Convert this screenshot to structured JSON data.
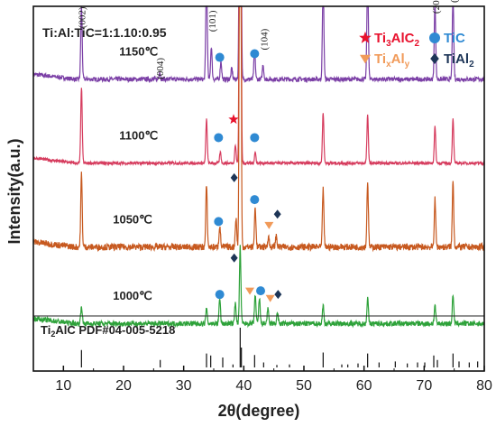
{
  "chart_data": {
    "type": "line",
    "xlabel": "2θ(degree)",
    "ylabel": "Intensity(a.u.)",
    "xlim": [
      5,
      80
    ],
    "xticks": [
      10,
      20,
      30,
      40,
      50,
      60,
      70,
      80
    ],
    "composition_label": "Ti:Al:TiC=1:1.10:0.95",
    "reference_label": {
      "base": "Ti",
      "sub": "2",
      "rest": "AlC  PDF#04-005-5218"
    },
    "legend": [
      {
        "marker": "star",
        "color": "#e8112d",
        "parts": [
          [
            "Ti",
            ""
          ],
          [
            "3",
            "sub"
          ],
          [
            "AlC",
            ""
          ],
          [
            "2",
            "sub"
          ]
        ]
      },
      {
        "marker": "circle",
        "color": "#2f8ad3",
        "parts": [
          [
            "TiC",
            ""
          ]
        ]
      },
      {
        "marker": "triangle",
        "color": "#f19a59",
        "parts": [
          [
            "Ti",
            ""
          ],
          [
            "x",
            "sub"
          ],
          [
            "Al",
            ""
          ],
          [
            "y",
            "sub"
          ]
        ]
      },
      {
        "marker": "diamond",
        "color": "#1d3557",
        "parts": [
          [
            "TiAl",
            ""
          ],
          [
            "2",
            "sub"
          ]
        ]
      }
    ],
    "series": [
      {
        "name": "1150℃",
        "color": "#7b3fa6",
        "baseline": 0.8,
        "noise": 0.006,
        "label_x": 22.5,
        "peaks": [
          [
            13.0,
            0.2
          ],
          [
            26.0,
            0.02
          ],
          [
            33.8,
            0.3
          ],
          [
            34.6,
            0.09
          ],
          [
            36.2,
            0.05
          ],
          [
            38.0,
            0.03
          ],
          [
            39.4,
            2.0
          ],
          [
            41.8,
            0.08
          ],
          [
            43.2,
            0.04
          ],
          [
            53.2,
            0.27
          ],
          [
            60.6,
            0.3
          ],
          [
            71.8,
            0.21
          ],
          [
            74.8,
            0.23
          ]
        ]
      },
      {
        "name": "1100℃",
        "color": "#d63c5e",
        "baseline": 0.57,
        "noise": 0.004,
        "label_x": 22.5,
        "peaks": [
          [
            13.0,
            0.21
          ],
          [
            33.8,
            0.12
          ],
          [
            36.1,
            0.03
          ],
          [
            38.6,
            0.05
          ],
          [
            39.4,
            2.0
          ],
          [
            41.9,
            0.03
          ],
          [
            53.2,
            0.14
          ],
          [
            60.6,
            0.13
          ],
          [
            71.8,
            0.1
          ],
          [
            74.8,
            0.12
          ]
        ]
      },
      {
        "name": "1050℃",
        "color": "#c7591f",
        "baseline": 0.34,
        "noise": 0.009,
        "label_x": 21.5,
        "peaks": [
          [
            13.0,
            0.2
          ],
          [
            33.8,
            0.17
          ],
          [
            36.0,
            0.06
          ],
          [
            38.7,
            0.08
          ],
          [
            39.4,
            2.0
          ],
          [
            41.9,
            0.11
          ],
          [
            44.1,
            0.03
          ],
          [
            45.4,
            0.03
          ],
          [
            53.2,
            0.16
          ],
          [
            60.6,
            0.18
          ],
          [
            71.8,
            0.13
          ],
          [
            74.8,
            0.18
          ]
        ]
      },
      {
        "name": "1000℃",
        "color": "#2ea23a",
        "baseline": 0.13,
        "noise": 0.007,
        "label_x": 21.5,
        "peaks": [
          [
            13.0,
            0.05
          ],
          [
            33.8,
            0.04
          ],
          [
            36.0,
            0.07
          ],
          [
            38.6,
            0.06
          ],
          [
            39.4,
            0.21
          ],
          [
            41.9,
            0.08
          ],
          [
            42.6,
            0.07
          ],
          [
            44.0,
            0.04
          ],
          [
            45.6,
            0.03
          ],
          [
            53.2,
            0.05
          ],
          [
            60.6,
            0.07
          ],
          [
            71.8,
            0.05
          ],
          [
            74.8,
            0.08
          ]
        ]
      }
    ],
    "peak_labels": [
      {
        "text": "(002)",
        "x": 13.0,
        "y": 0.94
      },
      {
        "text": "(004)",
        "x": 26.0,
        "y": 0.8
      },
      {
        "text": "(100)",
        "x": 33.9,
        "y": 1.06
      },
      {
        "text": "(101)",
        "x": 34.7,
        "y": 0.93
      },
      {
        "text": "(103)",
        "x": 39.4,
        "y": 1.32
      },
      {
        "text": "(104)",
        "x": 43.3,
        "y": 0.88
      },
      {
        "text": "(106)",
        "x": 53.2,
        "y": 1.04
      },
      {
        "text": "(110)",
        "x": 60.6,
        "y": 1.07
      },
      {
        "text": "(201)",
        "x": 71.9,
        "y": 0.98
      },
      {
        "text": "(116)",
        "x": 74.9,
        "y": 1.01
      }
    ],
    "markers": [
      {
        "type": "circle",
        "x": 36.0,
        "y": 0.86
      },
      {
        "type": "circle",
        "x": 41.8,
        "y": 0.87
      },
      {
        "type": "star",
        "x": 38.3,
        "y": 0.69
      },
      {
        "type": "circle",
        "x": 35.8,
        "y": 0.64
      },
      {
        "type": "circle",
        "x": 41.8,
        "y": 0.64
      },
      {
        "type": "diamond",
        "x": 38.4,
        "y": 0.53
      },
      {
        "type": "circle",
        "x": 35.8,
        "y": 0.41
      },
      {
        "type": "circle",
        "x": 41.8,
        "y": 0.47
      },
      {
        "type": "triangle",
        "x": 44.2,
        "y": 0.4
      },
      {
        "type": "diamond",
        "x": 45.6,
        "y": 0.43
      },
      {
        "type": "diamond",
        "x": 38.4,
        "y": 0.31
      },
      {
        "type": "circle",
        "x": 36.0,
        "y": 0.21
      },
      {
        "type": "triangle",
        "x": 41.0,
        "y": 0.22
      },
      {
        "type": "circle",
        "x": 42.8,
        "y": 0.22
      },
      {
        "type": "triangle",
        "x": 44.4,
        "y": 0.2
      },
      {
        "type": "diamond",
        "x": 45.7,
        "y": 0.21
      }
    ],
    "reference_sticks": [
      [
        13.0,
        0.35
      ],
      [
        26.1,
        0.15
      ],
      [
        33.8,
        0.28
      ],
      [
        34.5,
        0.24
      ],
      [
        36.5,
        0.2
      ],
      [
        38.2,
        0.06
      ],
      [
        39.4,
        0.8
      ],
      [
        39.6,
        0.4
      ],
      [
        41.8,
        0.25
      ],
      [
        43.3,
        0.1
      ],
      [
        45.5,
        0.05
      ],
      [
        47.6,
        0.06
      ],
      [
        53.2,
        0.3
      ],
      [
        56.3,
        0.06
      ],
      [
        57.3,
        0.06
      ],
      [
        59.0,
        0.08
      ],
      [
        60.6,
        0.28
      ],
      [
        62.5,
        0.1
      ],
      [
        65.2,
        0.12
      ],
      [
        67.2,
        0.08
      ],
      [
        68.9,
        0.1
      ],
      [
        70.1,
        0.1
      ],
      [
        71.6,
        0.24
      ],
      [
        72.2,
        0.15
      ],
      [
        74.8,
        0.28
      ],
      [
        75.8,
        0.12
      ],
      [
        77.5,
        0.1
      ],
      [
        78.9,
        0.12
      ]
    ]
  }
}
